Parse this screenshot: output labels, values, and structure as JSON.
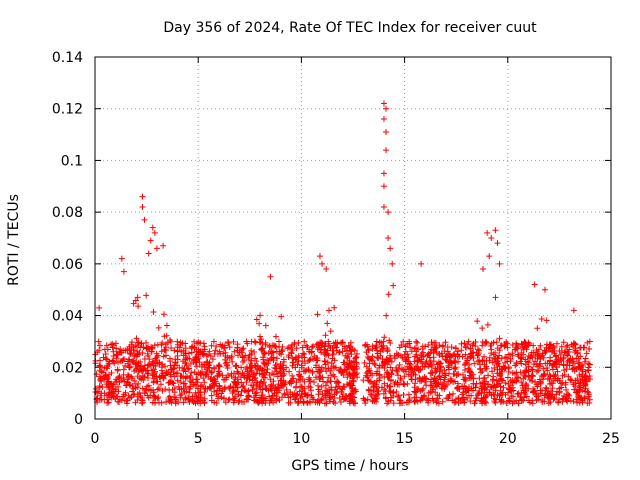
{
  "chart_data": {
    "type": "scatter",
    "title": "Day 356 of 2024, Rate Of TEC Index for receiver cuut",
    "xlabel": "GPS time / hours",
    "ylabel": "ROTI / TECUs",
    "xlim": [
      0,
      25
    ],
    "ylim": [
      0,
      0.14
    ],
    "xticks": [
      0,
      5,
      10,
      15,
      20,
      25
    ],
    "xtick_labels": [
      "0",
      "5",
      "10",
      "15",
      "20",
      "25"
    ],
    "yticks": [
      0,
      0.02,
      0.04,
      0.06,
      0.08,
      0.1,
      0.12,
      0.14
    ],
    "ytick_labels": [
      "0",
      "0.02",
      "0.04",
      "0.06",
      "0.08",
      "0.1",
      "0.12",
      "0.14"
    ],
    "grid": true,
    "marker": "+",
    "color": "#ff0000",
    "series": [
      {
        "name": "ROTI",
        "description": "dense cloud of samples, baseline ~0.005-0.03 across 0-24 h",
        "notable_points": [
          {
            "x": 2.3,
            "y": 0.086
          },
          {
            "x": 2.3,
            "y": 0.082
          },
          {
            "x": 2.4,
            "y": 0.077
          },
          {
            "x": 2.6,
            "y": 0.064
          },
          {
            "x": 2.7,
            "y": 0.069
          },
          {
            "x": 2.8,
            "y": 0.074
          },
          {
            "x": 2.9,
            "y": 0.072
          },
          {
            "x": 3.0,
            "y": 0.066
          },
          {
            "x": 3.3,
            "y": 0.067
          },
          {
            "x": 1.3,
            "y": 0.062
          },
          {
            "x": 1.4,
            "y": 0.057
          },
          {
            "x": 8.5,
            "y": 0.055
          },
          {
            "x": 10.9,
            "y": 0.063
          },
          {
            "x": 11.0,
            "y": 0.06
          },
          {
            "x": 11.2,
            "y": 0.058
          },
          {
            "x": 14.0,
            "y": 0.122
          },
          {
            "x": 14.1,
            "y": 0.12
          },
          {
            "x": 14.0,
            "y": 0.116
          },
          {
            "x": 14.1,
            "y": 0.111
          },
          {
            "x": 14.1,
            "y": 0.104
          },
          {
            "x": 14.0,
            "y": 0.095
          },
          {
            "x": 14.0,
            "y": 0.09
          },
          {
            "x": 14.0,
            "y": 0.082
          },
          {
            "x": 14.2,
            "y": 0.08
          },
          {
            "x": 14.2,
            "y": 0.07
          },
          {
            "x": 14.3,
            "y": 0.066
          },
          {
            "x": 14.4,
            "y": 0.06
          },
          {
            "x": 15.8,
            "y": 0.06
          },
          {
            "x": 19.0,
            "y": 0.072
          },
          {
            "x": 19.2,
            "y": 0.07
          },
          {
            "x": 19.4,
            "y": 0.073
          },
          {
            "x": 19.5,
            "y": 0.068
          },
          {
            "x": 19.1,
            "y": 0.063
          },
          {
            "x": 19.6,
            "y": 0.06
          },
          {
            "x": 18.8,
            "y": 0.058
          },
          {
            "x": 21.3,
            "y": 0.052
          },
          {
            "x": 21.8,
            "y": 0.05
          },
          {
            "x": 23.2,
            "y": 0.042
          },
          {
            "x": 0.2,
            "y": 0.043
          }
        ]
      }
    ]
  }
}
